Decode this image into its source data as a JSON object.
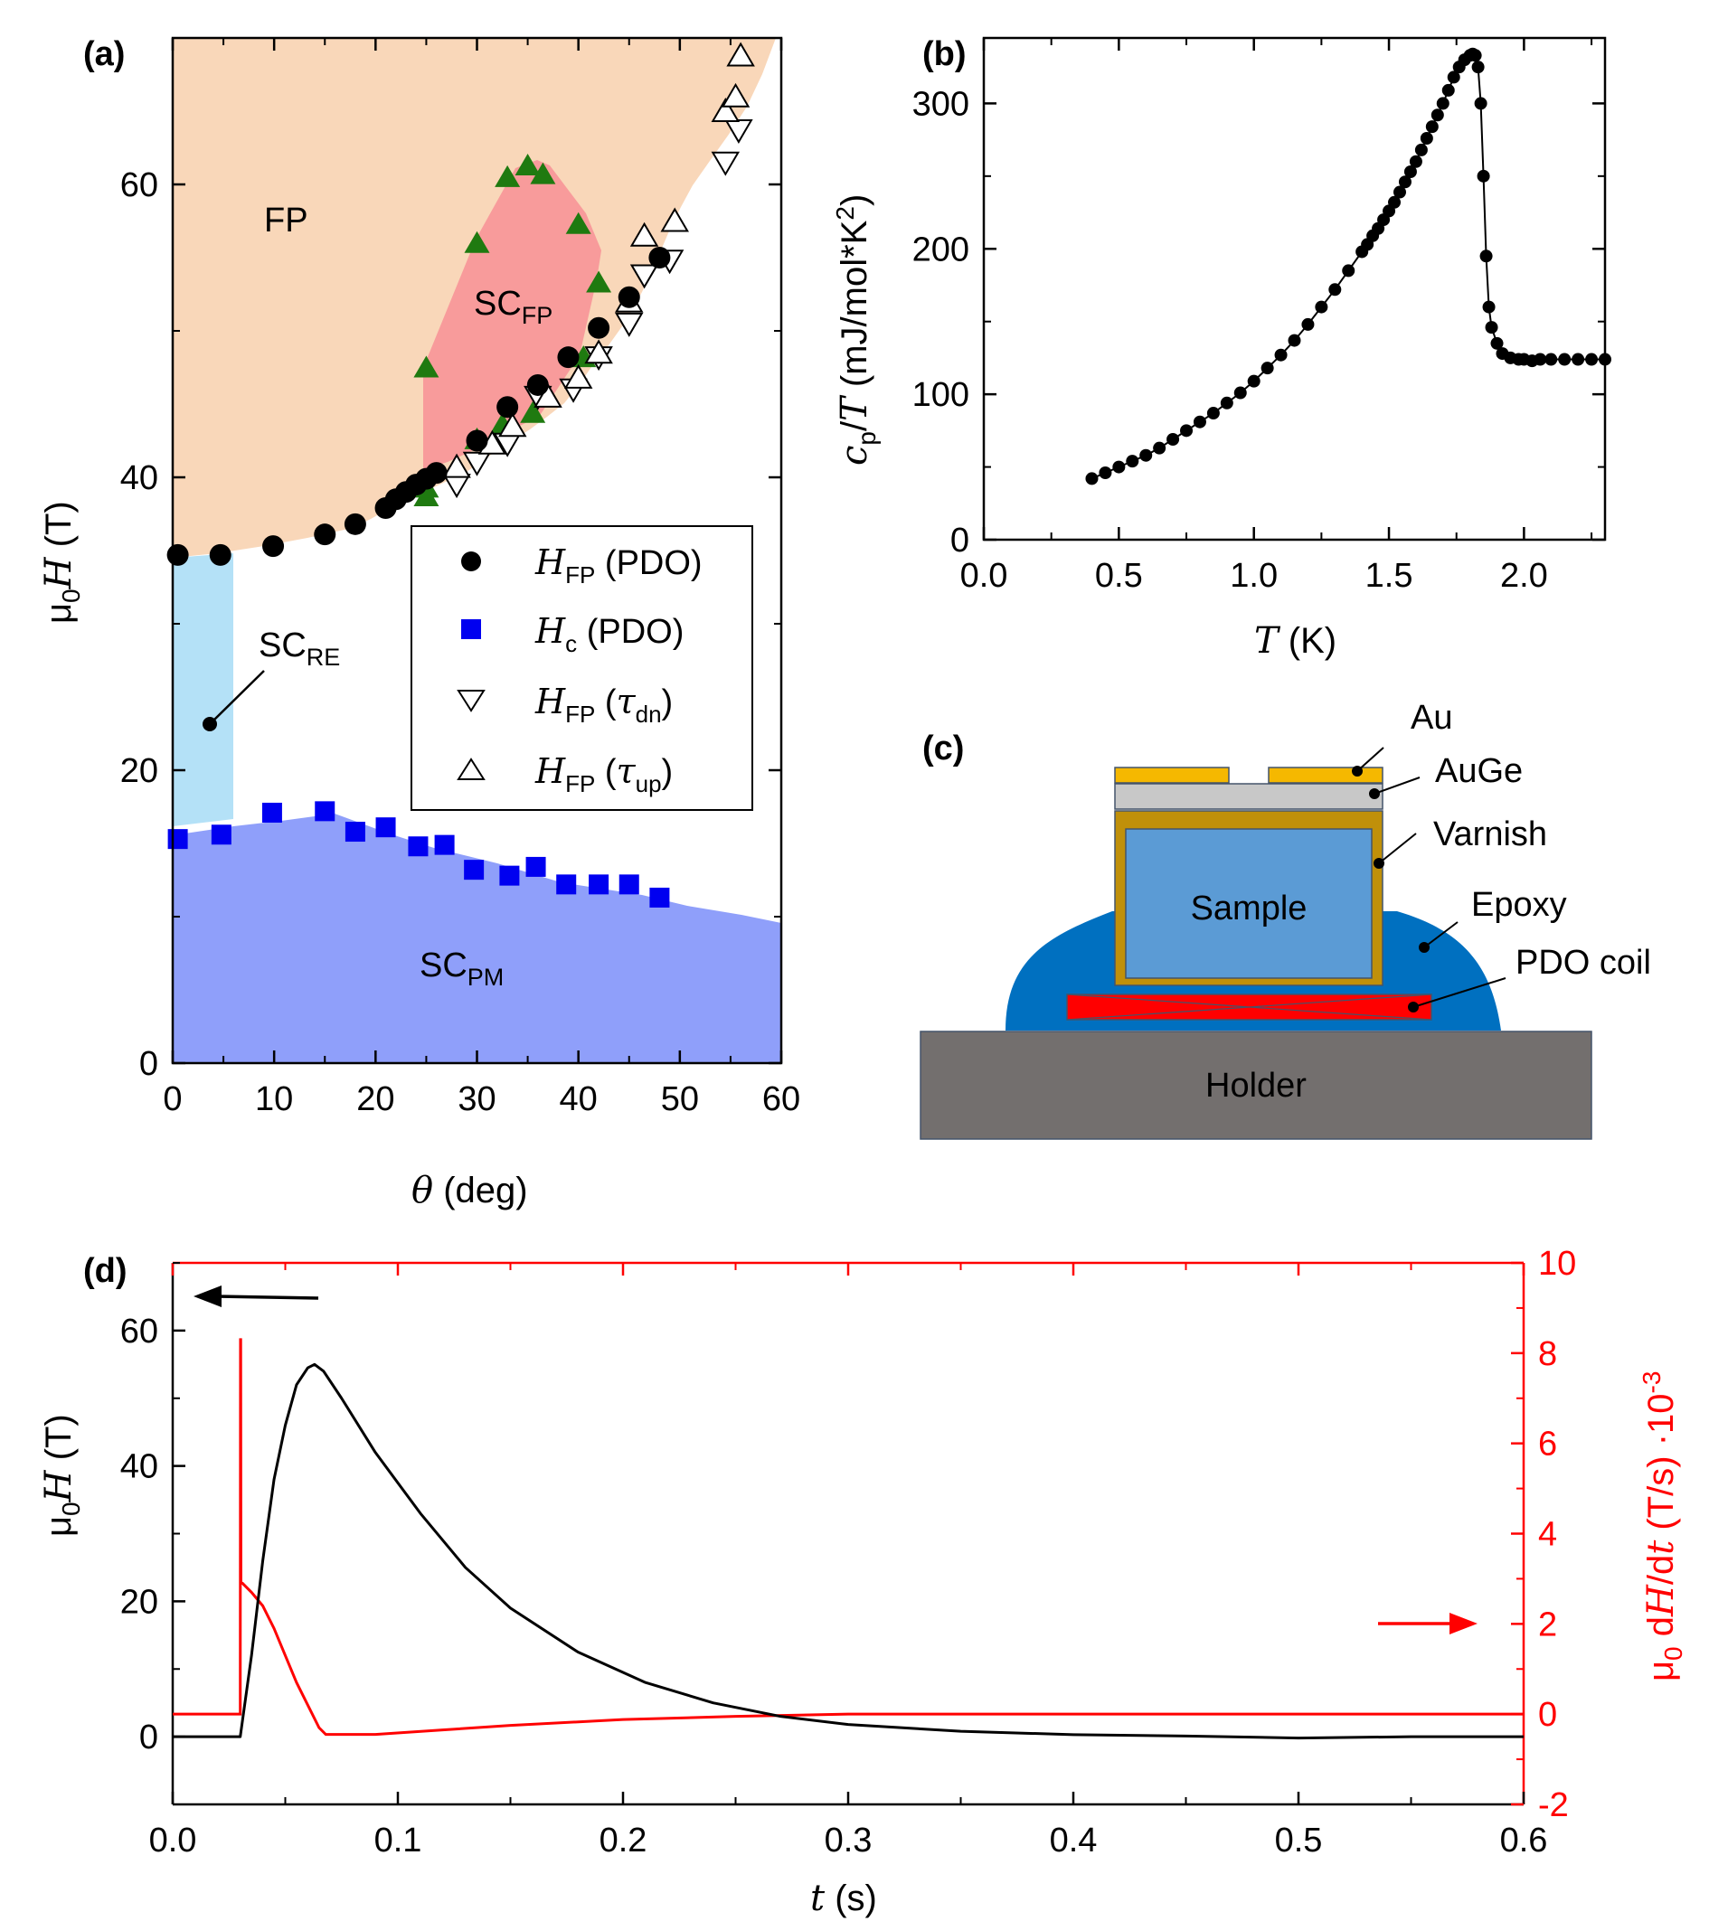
{
  "colors": {
    "fp_region": "#f9d7b9",
    "scfp_region": "#f89b9b",
    "scre_region": "#b4e1f7",
    "scpm_region": "#8f9ffa",
    "green_marker": "#1f7a10",
    "blue_marker": "#0000f0",
    "red_curve": "#ff0000",
    "gold": "#f5b800",
    "augege_gray": "#c8c8c8",
    "varnish": "#c0900a",
    "sample": "#5b9bd5",
    "epoxy": "#0070c0",
    "holder": "#736f6e"
  },
  "chart_data": [
    {
      "id": "a",
      "type": "scatter",
      "panel_label": "(a)",
      "xlabel_sym": "θ",
      "xlabel_unit": " (deg)",
      "ylabel_mu": "μ",
      "ylabel_sub": "0",
      "ylabel_sym": "H",
      "ylabel_unit": " (T)",
      "xlim": [
        0,
        60
      ],
      "ylim": [
        0,
        70
      ],
      "xticks": [
        0,
        10,
        20,
        30,
        40,
        50,
        60
      ],
      "yticks": [
        0,
        20,
        40,
        60
      ],
      "region_labels": {
        "fp": "FP",
        "scfp_main": "SC",
        "scfp_sub": "FP",
        "scre_main": "SC",
        "scre_sub": "RE",
        "scpm_main": "SC",
        "scpm_sub": "PM"
      },
      "legend": [
        {
          "sym": "H",
          "sub": "FP",
          "rest": " (PDO)",
          "marker": "circle"
        },
        {
          "sym": "H",
          "sub": "c",
          "rest": " (PDO)",
          "marker": "square"
        },
        {
          "sym": "H",
          "sub": "FP",
          "paren_sym": "τ",
          "paren_sub": "dn",
          "marker": "triangle-down"
        },
        {
          "sym": "H",
          "sub": "FP",
          "paren_sym": "τ",
          "paren_sub": "up",
          "marker": "triangle-up"
        }
      ],
      "series": [
        {
          "name": "H_FP (PDO)",
          "marker": "circle",
          "points": [
            [
              0.5,
              34.7
            ],
            [
              4.7,
              34.7
            ],
            [
              9.9,
              35.3
            ],
            [
              15,
              36.1
            ],
            [
              18,
              36.8
            ],
            [
              21,
              37.9
            ],
            [
              22,
              38.5
            ],
            [
              23,
              39
            ],
            [
              24,
              39.5
            ],
            [
              25,
              39.9
            ],
            [
              26,
              40.3
            ],
            [
              30,
              42.5
            ],
            [
              33,
              44.8
            ],
            [
              36,
              46.3
            ],
            [
              39,
              48.2
            ],
            [
              42,
              50.2
            ],
            [
              45,
              52.3
            ],
            [
              48,
              55
            ]
          ]
        },
        {
          "name": "H_c (PDO)",
          "marker": "square",
          "points": [
            [
              0.5,
              15.3
            ],
            [
              4.8,
              15.6
            ],
            [
              9.8,
              17.1
            ],
            [
              15,
              17.2
            ],
            [
              18,
              15.8
            ],
            [
              21,
              16.1
            ],
            [
              24.2,
              14.8
            ],
            [
              26.8,
              14.9
            ],
            [
              29.7,
              13.2
            ],
            [
              33.2,
              12.8
            ],
            [
              35.8,
              13.4
            ],
            [
              38.8,
              12.2
            ],
            [
              42,
              12.2
            ],
            [
              45,
              12.2
            ],
            [
              48,
              11.3
            ]
          ]
        },
        {
          "name": "H_FP (tau_dn)",
          "marker": "triangle-down",
          "points": [
            [
              28,
              39.5
            ],
            [
              30,
              41
            ],
            [
              33,
              42.3
            ],
            [
              36,
              45.5
            ],
            [
              39.5,
              46
            ],
            [
              42,
              48.2
            ],
            [
              45,
              50.5
            ],
            [
              46.5,
              53.8
            ],
            [
              49,
              54.8
            ],
            [
              54.5,
              61.5
            ],
            [
              55.8,
              63.7
            ]
          ]
        },
        {
          "name": "H_FP (tau_up)",
          "marker": "triangle-up",
          "points": [
            [
              28,
              40.7
            ],
            [
              31.5,
              42.3
            ],
            [
              33.5,
              43.5
            ],
            [
              37,
              45.5
            ],
            [
              40,
              46.8
            ],
            [
              42,
              48.5
            ],
            [
              45,
              52
            ],
            [
              46.5,
              56.5
            ],
            [
              49.5,
              57.5
            ],
            [
              54.5,
              65
            ],
            [
              55.5,
              66
            ],
            [
              56,
              68.8
            ]
          ]
        },
        {
          "name": "SC_FP boundary (green)",
          "marker": "triangle-up-filled",
          "points": [
            [
              25,
              38.7
            ],
            [
              25,
              47.5
            ],
            [
              30,
              56
            ],
            [
              33,
              60.5
            ],
            [
              35,
              61.3
            ],
            [
              36.5,
              60.7
            ],
            [
              40,
              57.3
            ],
            [
              42,
              53.3
            ],
            [
              40.5,
              48.2
            ],
            [
              35.5,
              44.4
            ],
            [
              32.5,
              43.6
            ],
            [
              30,
              42.6
            ],
            [
              25,
              39.3
            ]
          ]
        }
      ]
    },
    {
      "id": "b",
      "type": "line",
      "panel_label": "(b)",
      "xlabel_sym": "T",
      "xlabel_unit": " (K)",
      "ylabel_c": "c",
      "ylabel_p": "p",
      "ylabel_mid": "/",
      "ylabel_T": "T",
      "ylabel_unit": " (mJ/mol*K",
      "ylabel_sup": "2",
      "ylabel_close": ")",
      "xlim": [
        0,
        2.3
      ],
      "ylim": [
        0,
        345
      ],
      "xticks": [
        "0.0",
        "0.5",
        "1.0",
        "1.5",
        "2.0"
      ],
      "yticks": [
        "0",
        "100",
        "200",
        "300"
      ],
      "x": [
        0.4,
        0.45,
        0.5,
        0.55,
        0.6,
        0.65,
        0.7,
        0.75,
        0.8,
        0.85,
        0.9,
        0.95,
        1.0,
        1.05,
        1.1,
        1.15,
        1.2,
        1.25,
        1.3,
        1.35,
        1.4,
        1.42,
        1.44,
        1.46,
        1.48,
        1.5,
        1.52,
        1.54,
        1.56,
        1.58,
        1.6,
        1.62,
        1.64,
        1.66,
        1.68,
        1.7,
        1.72,
        1.74,
        1.76,
        1.78,
        1.8,
        1.81,
        1.82,
        1.83,
        1.84,
        1.85,
        1.86,
        1.87,
        1.88,
        1.9,
        1.92,
        1.95,
        1.98,
        2.0,
        2.03,
        2.06,
        2.1,
        2.15,
        2.2,
        2.25,
        2.3
      ],
      "y": [
        42,
        46,
        50,
        54,
        58,
        63,
        69,
        75,
        81,
        87,
        94,
        101,
        109,
        118,
        127,
        137,
        148,
        160,
        172,
        185,
        198,
        203,
        209,
        214,
        220,
        226,
        232,
        239,
        246,
        253,
        260,
        268,
        276,
        284,
        292,
        300,
        309,
        318,
        325,
        330,
        333,
        334,
        333,
        325,
        300,
        250,
        195,
        160,
        146,
        135,
        128,
        125,
        124,
        124,
        123,
        124,
        124,
        124,
        124,
        124,
        124
      ]
    },
    {
      "id": "d",
      "type": "line",
      "panel_label": "(d)",
      "xlabel_sym": "t",
      "xlabel_unit": " (s)",
      "ylabel_mu": "μ",
      "ylabel_sub": "0",
      "ylabel_sym": "H",
      "ylabel_unit": " (T)",
      "y2label_mu": "μ",
      "y2label_sub": "0",
      "y2label_d": " d",
      "y2label_H": "H",
      "y2label_dt": "/d",
      "y2label_t": "t",
      "y2label_unit": " (T/s) ·10",
      "y2label_exp": "-3",
      "xlim": [
        0,
        0.6
      ],
      "ylim": [
        -10,
        70
      ],
      "y2lim": [
        -2,
        10
      ],
      "xticks": [
        "0.0",
        "0.1",
        "0.2",
        "0.3",
        "0.4",
        "0.5",
        "0.6"
      ],
      "yticks": [
        "0",
        "20",
        "40",
        "60"
      ],
      "y2ticks": [
        "-2",
        "0",
        "2",
        "4",
        "6",
        "8",
        "10"
      ],
      "series": [
        {
          "name": "mu0 H",
          "axis": "left",
          "x": [
            0,
            0.03,
            0.035,
            0.04,
            0.045,
            0.05,
            0.055,
            0.06,
            0.063,
            0.067,
            0.075,
            0.09,
            0.11,
            0.13,
            0.15,
            0.18,
            0.21,
            0.24,
            0.27,
            0.3,
            0.35,
            0.4,
            0.45,
            0.5,
            0.55,
            0.6
          ],
          "y": [
            0,
            0,
            12,
            26,
            38,
            46,
            52,
            54.5,
            55,
            54,
            50,
            42,
            33,
            25,
            19,
            12.5,
            8,
            5,
            3,
            1.8,
            0.8,
            0.3,
            0.1,
            -0.2,
            0,
            0
          ]
        },
        {
          "name": "mu0 dH/dt",
          "axis": "right",
          "x": [
            0,
            0.03,
            0.0301,
            0.0302,
            0.0303,
            0.031,
            0.035,
            0.04,
            0.045,
            0.05,
            0.055,
            0.06,
            0.065,
            0.068,
            0.075,
            0.09,
            0.12,
            0.15,
            0.2,
            0.25,
            0.3,
            0.35,
            0.4,
            0.45,
            0.5,
            0.6
          ],
          "y": [
            0,
            0,
            8.3,
            8.3,
            2.9,
            2.9,
            2.7,
            2.4,
            1.9,
            1.3,
            0.7,
            0.2,
            -0.3,
            -0.45,
            -0.45,
            -0.45,
            -0.35,
            -0.25,
            -0.12,
            -0.05,
            0,
            0,
            0,
            0,
            0,
            0
          ]
        }
      ]
    }
  ],
  "schematic": {
    "panel_label": "(c)",
    "labels": {
      "au": "Au",
      "auge": "AuGe",
      "varnish": "Varnish",
      "epoxy": "Epoxy",
      "pdo": "PDO coil",
      "sample": "Sample",
      "holder": "Holder"
    }
  }
}
